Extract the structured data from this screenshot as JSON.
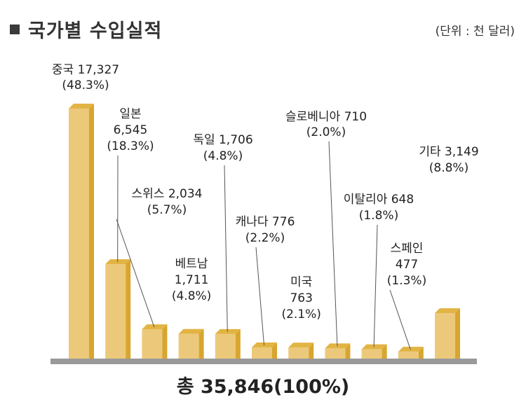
{
  "header": {
    "title": "국가별 수입실적",
    "unit": "(단위 : 천 달러)"
  },
  "total_label": "총 35,846(100%)",
  "colors": {
    "bar_front": "#ecc97a",
    "bar_side": "#d8a52e",
    "bar_top": "#e2b444",
    "baseline": "#999999",
    "leader": "#555555"
  },
  "chart_data": {
    "type": "bar",
    "title": "국가별 수입실적",
    "unit": "(단위 : 천 달러)",
    "categories": [
      "중국",
      "일본",
      "스위스",
      "베트남",
      "독일",
      "캐나다",
      "미국",
      "슬로베니아",
      "이탈리아",
      "스페인",
      "기타"
    ],
    "values": [
      17327,
      6545,
      2034,
      1711,
      1706,
      776,
      763,
      710,
      648,
      477,
      3149
    ],
    "label_lines": [
      [
        "중국 17,327",
        "(48.3%)"
      ],
      [
        "일본",
        "6,545",
        "(18.3%)"
      ],
      [
        "스위스 2,034",
        "(5.7%)"
      ],
      [
        "베트남",
        "1,711",
        "(4.8%)"
      ],
      [
        "독일 1,706",
        "(4.8%)"
      ],
      [
        "캐나다  776",
        "(2.2%)"
      ],
      [
        "미국",
        "763",
        "(2.1%)"
      ],
      [
        "슬로베니아 710",
        "(2.0%)"
      ],
      [
        "이탈리아 648",
        "(1.8%)"
      ],
      [
        "스페인",
        "477",
        "(1.3%)"
      ],
      [
        "기타 3,149",
        "(8.8%)"
      ]
    ],
    "total": 35846,
    "grid": false,
    "legend": "none"
  }
}
